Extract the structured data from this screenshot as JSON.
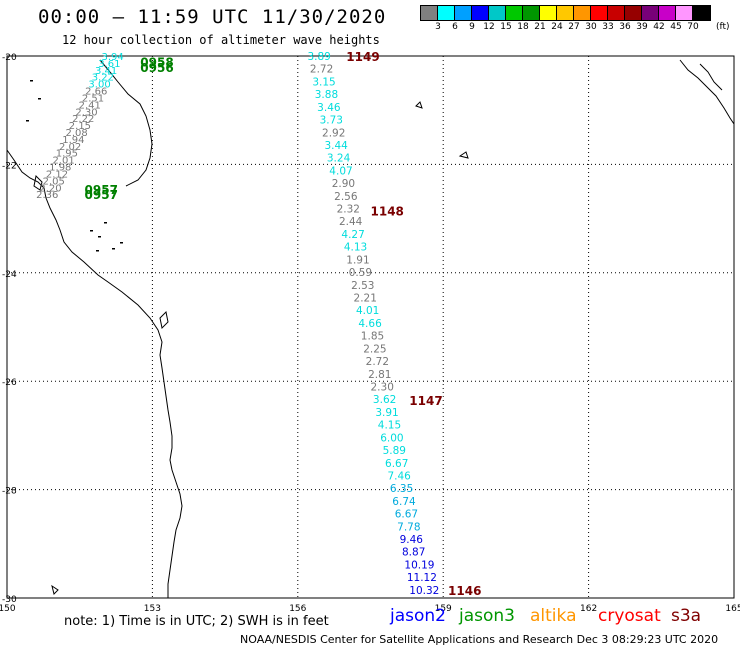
{
  "title": "00:00 – 11:59 UTC 11/30/2020",
  "subtitle": "12 hour collection of altimeter wave heights",
  "colorbar": {
    "labels": [
      "3",
      "6",
      "9",
      "12",
      "15",
      "18",
      "21",
      "24",
      "27",
      "30",
      "33",
      "36",
      "39",
      "42",
      "45",
      "70"
    ],
    "unit": "(ft)",
    "colors": [
      "#808080",
      "#00ffff",
      "#00a0ff",
      "#0000ff",
      "#00c8c8",
      "#00c800",
      "#009600",
      "#ffff00",
      "#ffc800",
      "#ff9600",
      "#ff0000",
      "#c80000",
      "#960000",
      "#780078",
      "#c800c8",
      "#ff96ff",
      "#000000"
    ]
  },
  "map": {
    "lat_ticks": [
      "-20",
      "-22",
      "-24",
      "-26",
      "-28",
      "-30"
    ],
    "lon_ticks": [
      "150",
      "153",
      "156",
      "159",
      "162",
      "165"
    ],
    "lat_values": [
      -20,
      -22,
      -24,
      -26,
      -28,
      -30
    ],
    "lon_values": [
      150,
      153,
      156,
      159,
      162,
      165
    ],
    "extent": {
      "lon_min": 150,
      "lon_max": 165,
      "lat_max": -20,
      "lat_min": -30
    },
    "pass_times": [
      {
        "label": "1149",
        "lon": 157.0,
        "lat": -20.0,
        "color": "#7a0000"
      },
      {
        "label": "1148",
        "lon": 157.5,
        "lat": -22.85,
        "color": "#7a0000"
      },
      {
        "label": "1147",
        "lon": 158.3,
        "lat": -26.35,
        "color": "#7a0000"
      },
      {
        "label": "1146",
        "lon": 159.1,
        "lat": -29.85,
        "color": "#7a0000"
      },
      {
        "label": "0958",
        "lon": 152.75,
        "lat": -20.1,
        "color": "#008000"
      },
      {
        "label": "0956",
        "lon": 152.75,
        "lat": -20.2,
        "color": "#008000"
      },
      {
        "label": "0957",
        "lon": 151.6,
        "lat": -22.45,
        "color": "#008000"
      },
      {
        "label": "0957",
        "lon": 151.6,
        "lat": -22.55,
        "color": "#008000"
      }
    ],
    "track_a": {
      "values": [
        "3.89",
        "2.72",
        "3.15",
        "3.88",
        "3.46",
        "3.73",
        "2.92",
        "3.44",
        "3.24",
        "4.07",
        "2.90",
        "2.56",
        "2.32",
        "2.44",
        "4.27",
        "4.13",
        "1.91",
        "0.59",
        "2.53",
        "2.21",
        "4.01",
        "4.66",
        "1.85",
        "2.25",
        "2.72",
        "2.81",
        "2.30",
        "3.62",
        "3.91",
        "4.15",
        "6.00",
        "5.89",
        "6.67",
        "7.46",
        "6.35",
        "6.74",
        "6.67",
        "7.78",
        "9.46",
        "8.87",
        "10.19",
        "11.12",
        "10.32"
      ],
      "colors": [
        "#00dcdc",
        "#777777",
        "#00dcdc",
        "#00dcdc",
        "#00dcdc",
        "#00dcdc",
        "#777777",
        "#00dcdc",
        "#00dcdc",
        "#00dcdc",
        "#777777",
        "#777777",
        "#777777",
        "#777777",
        "#00dcdc",
        "#00dcdc",
        "#777777",
        "#777777",
        "#777777",
        "#777777",
        "#00dcdc",
        "#00dcdc",
        "#777777",
        "#777777",
        "#777777",
        "#777777",
        "#777777",
        "#00dcdc",
        "#00dcdc",
        "#00dcdc",
        "#00dcdc",
        "#00dcdc",
        "#00dcdc",
        "#00dcdc",
        "#00aadd",
        "#00aadd",
        "#00aadd",
        "#00aadd",
        "#0000dd",
        "#0000dd",
        "#0000dd",
        "#0000dd",
        "#0000dd"
      ],
      "lat_start": -20.0,
      "lat_end": -29.85,
      "lon_start": 156.2,
      "lon_end": 158.3
    },
    "track_b": {
      "values": [
        "2.36",
        "2.20",
        "2.05",
        "2.12",
        "1.98",
        "2.01",
        "1.95",
        "2.02",
        "1.94",
        "2.08",
        "2.15",
        "2.22",
        "2.30",
        "2.41",
        "2.51",
        "2.66",
        "3.00",
        "3.22",
        "3.41",
        "3.61",
        "3.94"
      ],
      "colors": [
        "#777777",
        "#777777",
        "#777777",
        "#777777",
        "#777777",
        "#777777",
        "#777777",
        "#777777",
        "#777777",
        "#777777",
        "#777777",
        "#777777",
        "#777777",
        "#777777",
        "#777777",
        "#777777",
        "#00dcdc",
        "#00dcdc",
        "#00dcdc",
        "#00dcdc",
        "#00dcdc"
      ],
      "lat_start": -22.55,
      "lat_end": -20.0,
      "lon_start": 150.6,
      "lon_end": 151.95
    }
  },
  "note": "note: 1) Time is in UTC; 2) SWH is in feet",
  "satellites": [
    {
      "name": "jason2",
      "color": "#0000ff"
    },
    {
      "name": "jason3",
      "color": "#009600"
    },
    {
      "name": "altika",
      "color": "#ff9600"
    },
    {
      "name": "cryosat",
      "color": "#ff0000"
    },
    {
      "name": "s3a",
      "color": "#800000"
    }
  ],
  "footer": "NOAA/NESDIS Center for Satellite Applications and Research    Dec  3 08:29:23 UTC 2020"
}
